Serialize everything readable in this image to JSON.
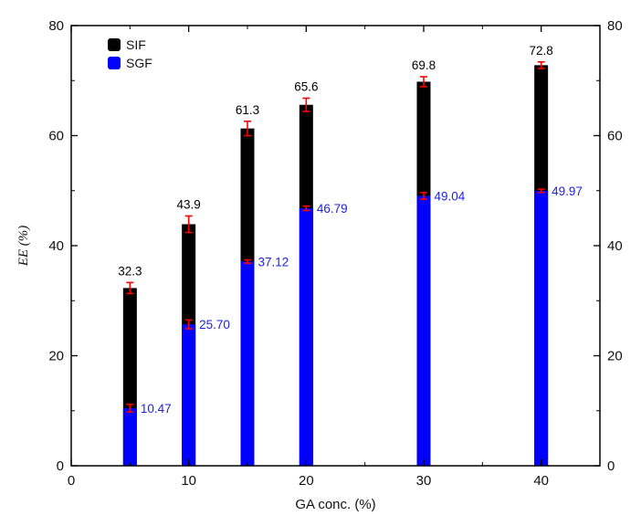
{
  "chart_data": {
    "type": "bar",
    "stacked_overlay": true,
    "x_values": [
      5,
      10,
      15,
      20,
      30,
      40
    ],
    "xlabel": "GA conc. (%)",
    "ylabel": "EE (%)",
    "xlim": [
      0,
      45
    ],
    "ylim": [
      0,
      80
    ],
    "xticks": [
      "0",
      "10",
      "20",
      "30",
      "40"
    ],
    "yticks": [
      "0",
      "20",
      "40",
      "60",
      "80"
    ],
    "xtick_values": [
      0,
      10,
      20,
      30,
      40
    ],
    "ytick_values": [
      0,
      20,
      40,
      60,
      80
    ],
    "grid": false,
    "legend_position": "top-left",
    "series": [
      {
        "name": "SIF",
        "color": "#000000",
        "label_color": "#000000",
        "values": [
          32.3,
          43.9,
          61.3,
          65.6,
          69.8,
          72.8
        ],
        "labels": [
          "32.3",
          "43.9",
          "61.3",
          "65.6",
          "69.8",
          "72.8"
        ],
        "errors": [
          1.0,
          1.5,
          1.3,
          1.2,
          0.9,
          0.6
        ]
      },
      {
        "name": "SGF",
        "color": "#0000ff",
        "label_color": "#2222dd",
        "values": [
          10.47,
          25.7,
          37.12,
          46.79,
          49.04,
          49.97
        ],
        "labels": [
          "10.47",
          "25.70",
          "37.12",
          "46.79",
          "49.04",
          "49.97"
        ],
        "errors": [
          0.7,
          0.8,
          0.3,
          0.4,
          0.6,
          0.3
        ]
      }
    ],
    "error_bar_color": "#ff0000"
  }
}
